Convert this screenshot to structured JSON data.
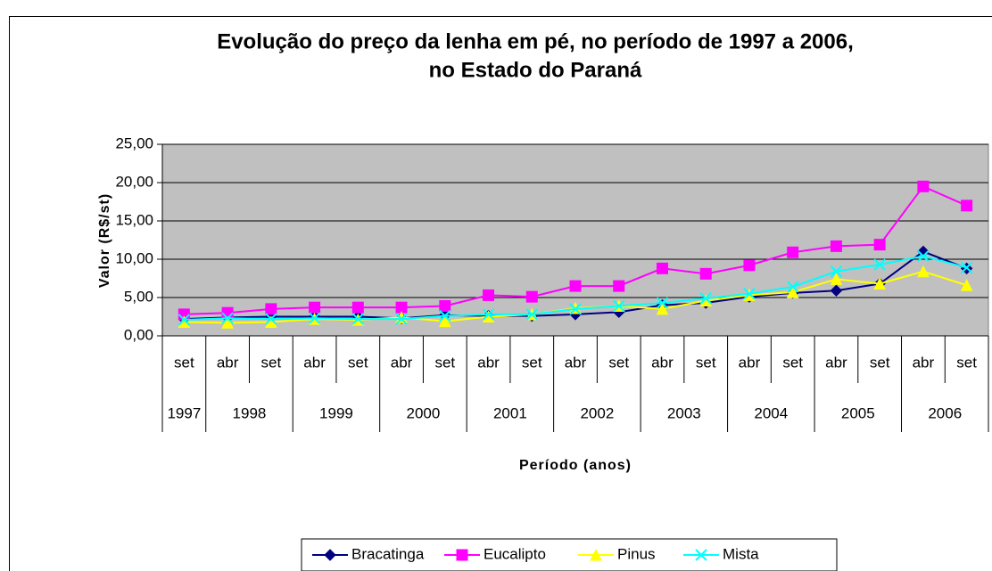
{
  "chart_data": {
    "type": "line",
    "title": [
      "Evolução do preço da lenha em pé, no período de 1997 a 2006,",
      "no Estado do Paraná"
    ],
    "x_label": "Período (anos)",
    "y_label": "Valor (R$/st)",
    "categories": [
      "set",
      "abr",
      "set",
      "abr",
      "set",
      "abr",
      "set",
      "abr",
      "set",
      "abr",
      "set",
      "abr",
      "set",
      "abr",
      "set",
      "abr",
      "set",
      "abr",
      "set"
    ],
    "year_groups": [
      {
        "label": "1997",
        "count": 1
      },
      {
        "label": "1998",
        "count": 2
      },
      {
        "label": "1999",
        "count": 2
      },
      {
        "label": "2000",
        "count": 2
      },
      {
        "label": "2001",
        "count": 2
      },
      {
        "label": "2002",
        "count": 2
      },
      {
        "label": "2003",
        "count": 2
      },
      {
        "label": "2004",
        "count": 2
      },
      {
        "label": "2005",
        "count": 2
      },
      {
        "label": "2006",
        "count": 2
      }
    ],
    "series": [
      {
        "name": "Bracatinga",
        "color": "#000080",
        "marker": "diamond",
        "values": [
          2.2,
          2.4,
          2.5,
          2.5,
          2.5,
          2.3,
          2.7,
          2.6,
          2.6,
          2.8,
          3.1,
          4.0,
          4.3,
          5.1,
          5.6,
          5.9,
          6.8,
          11.0,
          8.8
        ]
      },
      {
        "name": "Eucalipto",
        "color": "#ff00ff",
        "marker": "square",
        "values": [
          2.8,
          3.0,
          3.5,
          3.7,
          3.7,
          3.7,
          3.9,
          5.3,
          5.1,
          6.5,
          6.5,
          8.8,
          8.1,
          9.2,
          10.9,
          11.7,
          11.9,
          19.5,
          17.0
        ]
      },
      {
        "name": "Pinus",
        "color": "#ffff00",
        "marker": "triangle",
        "values": [
          1.8,
          1.7,
          1.8,
          2.2,
          2.1,
          2.4,
          1.9,
          2.5,
          2.8,
          3.6,
          3.9,
          3.5,
          4.6,
          5.3,
          5.7,
          7.4,
          6.8,
          8.4,
          6.6
        ]
      },
      {
        "name": "Mista",
        "color": "#00ffff",
        "marker": "x",
        "values": [
          2.1,
          2.3,
          2.2,
          2.3,
          2.2,
          2.2,
          2.6,
          2.8,
          2.8,
          3.5,
          3.9,
          4.3,
          4.9,
          5.5,
          6.4,
          8.4,
          9.3,
          10.4,
          8.9
        ]
      }
    ],
    "ylim": [
      0,
      25
    ],
    "yticks": [
      {
        "value": 0,
        "label": "0,00"
      },
      {
        "value": 5,
        "label": "5,00"
      },
      {
        "value": 10,
        "label": "10,00"
      },
      {
        "value": 15,
        "label": "15,00"
      },
      {
        "value": 20,
        "label": "20,00"
      },
      {
        "value": 25,
        "label": "25,00"
      }
    ],
    "grid": true,
    "plot_background": "#c0c0c0",
    "legend_position": "bottom"
  }
}
